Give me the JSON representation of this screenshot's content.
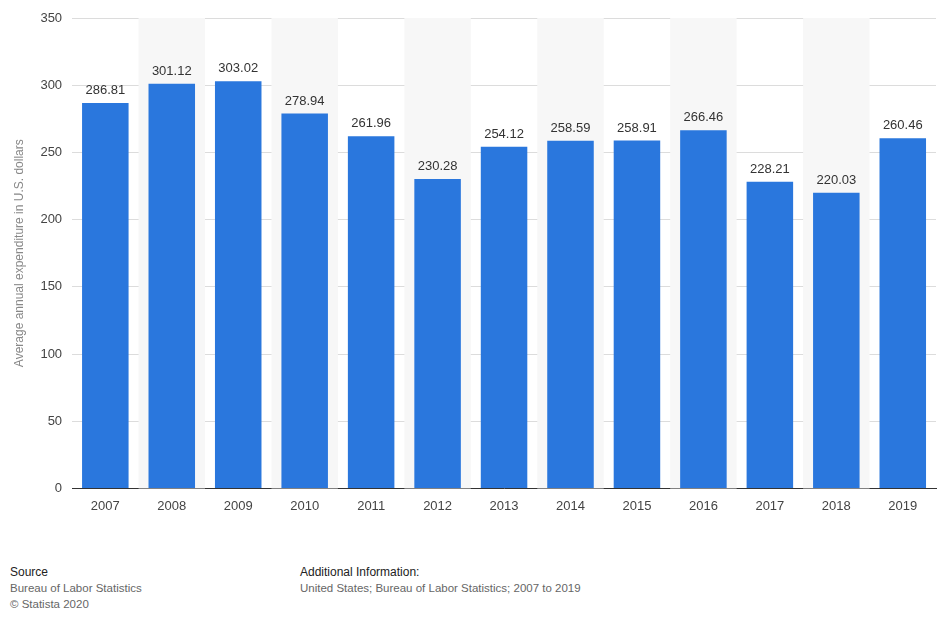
{
  "chart_data": {
    "type": "bar",
    "y_label": "Average annual expenditure in U.S. dollars",
    "categories": [
      "2007",
      "2008",
      "2009",
      "2010",
      "2011",
      "2012",
      "2013",
      "2014",
      "2015",
      "2016",
      "2017",
      "2018",
      "2019"
    ],
    "values": [
      286.81,
      301.12,
      303.02,
      278.94,
      261.96,
      230.28,
      254.12,
      258.59,
      258.91,
      266.46,
      228.21,
      220.03,
      260.46
    ],
    "color": "#2a77dd",
    "ylim": [
      0,
      350
    ],
    "yticks": [
      0,
      50,
      100,
      150,
      200,
      250,
      300,
      350
    ],
    "grid": true,
    "data_labels": true,
    "annotations": {
      "source_heading": "Source",
      "source_lines": [
        "Bureau of Labor Statistics",
        "© Statista 2020"
      ],
      "info_heading": "Additional Information:",
      "info_lines": [
        "United States; Bureau of Labor Statistics; 2007 to 2019"
      ]
    }
  }
}
